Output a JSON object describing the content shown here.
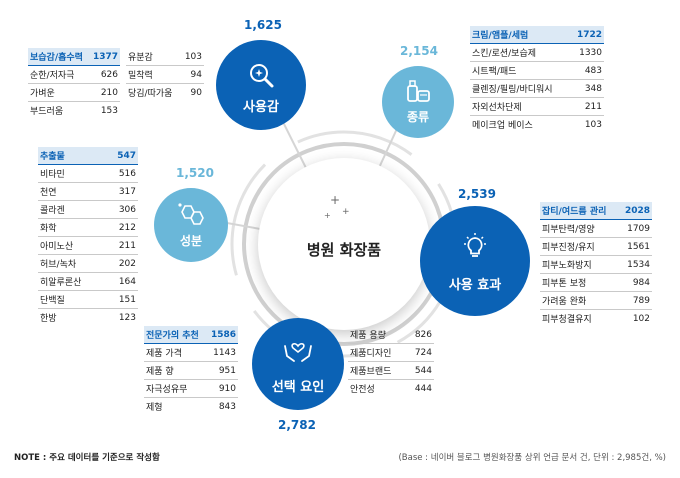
{
  "center": {
    "title": "병원 화장품"
  },
  "nodes": {
    "usage_feel": {
      "label": "사용감",
      "count": "1,625",
      "icon": "magnifier-sparkle-icon",
      "color": "#0b62b5"
    },
    "type": {
      "label": "종류",
      "count": "2,154",
      "icon": "cosmetic-bottles-icon",
      "color": "#6ab7d9"
    },
    "ingredient": {
      "label": "성분",
      "count": "1,520",
      "icon": "molecule-icon",
      "color": "#6ab7d9"
    },
    "effect": {
      "label": "사용 효과",
      "count": "2,539",
      "icon": "lightbulb-icon",
      "color": "#0b62b5"
    },
    "selection": {
      "label": "선택 요인",
      "count": "2,782",
      "icon": "hands-heart-icon",
      "color": "#0b62b5"
    }
  },
  "tables": {
    "usage_feel_a": [
      {
        "label": "보습감/흡수력",
        "value": "1377"
      },
      {
        "label": "순한/저자극",
        "value": "626"
      },
      {
        "label": "가벼운",
        "value": "210"
      },
      {
        "label": "부드러움",
        "value": "153"
      }
    ],
    "usage_feel_b": [
      {
        "label": "유분감",
        "value": "103"
      },
      {
        "label": "밀착력",
        "value": "94"
      },
      {
        "label": "당김/따가움",
        "value": "90"
      }
    ],
    "type": [
      {
        "label": "크림/앰플/세럼",
        "value": "1722"
      },
      {
        "label": "스킨/로션/보습제",
        "value": "1330"
      },
      {
        "label": "시트팩/패드",
        "value": "483"
      },
      {
        "label": "클렌징/필링/바디워시",
        "value": "348"
      },
      {
        "label": "자외선차단제",
        "value": "211"
      },
      {
        "label": "메이크업 베이스",
        "value": "103"
      }
    ],
    "ingredient": [
      {
        "label": "추출물",
        "value": "547"
      },
      {
        "label": "비타민",
        "value": "516"
      },
      {
        "label": "천연",
        "value": "317"
      },
      {
        "label": "콜라겐",
        "value": "306"
      },
      {
        "label": "화학",
        "value": "212"
      },
      {
        "label": "아미노산",
        "value": "211"
      },
      {
        "label": "허브/녹차",
        "value": "202"
      },
      {
        "label": "히알루론산",
        "value": "164"
      },
      {
        "label": "단백질",
        "value": "151"
      },
      {
        "label": "한방",
        "value": "123"
      }
    ],
    "effect": [
      {
        "label": "잡티/여드름 관리",
        "value": "2028"
      },
      {
        "label": "피부탄력/영양",
        "value": "1709"
      },
      {
        "label": "피부진정/유지",
        "value": "1561"
      },
      {
        "label": "피부노화방지",
        "value": "1534"
      },
      {
        "label": "피부톤 보정",
        "value": "984"
      },
      {
        "label": "가려움 완화",
        "value": "789"
      },
      {
        "label": "피부청결유지",
        "value": "102"
      }
    ],
    "selection_a": [
      {
        "label": "전문가의 추천",
        "value": "1586"
      },
      {
        "label": "제품 가격",
        "value": "1143"
      },
      {
        "label": "제품 향",
        "value": "951"
      },
      {
        "label": "자극성유무",
        "value": "910"
      },
      {
        "label": "제형",
        "value": "843"
      }
    ],
    "selection_b": [
      {
        "label": "제품 용량",
        "value": "826"
      },
      {
        "label": "제품디자인",
        "value": "724"
      },
      {
        "label": "제품브랜드",
        "value": "544"
      },
      {
        "label": "안전성",
        "value": "444"
      }
    ]
  },
  "footer": {
    "note": "NOTE : 주요 데이터를 기준으로 작성함",
    "base": "(Base : 네이버 블로그 병원화장품 상위 언급 문서 건, 단위 : 2,985건, %)"
  }
}
